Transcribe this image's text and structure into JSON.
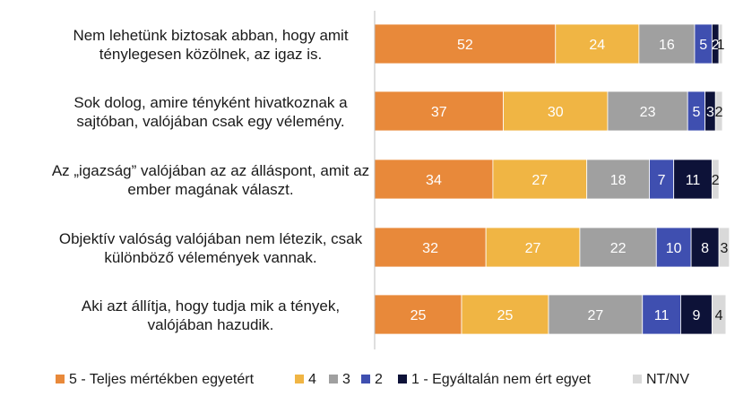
{
  "chart_data": {
    "type": "bar",
    "orientation": "horizontal",
    "stacked": true,
    "xlim": [
      0,
      100
    ],
    "grid": false,
    "legend_position": "bottom",
    "categories": [
      "Nem lehetünk biztosak abban, hogy amit ténylegesen közölnek, az igaz is.",
      "Sok dolog, amire tényként hivatkoznak a sajtóban, valójában csak egy vélemény.",
      "Az „igazság” valójában az az álláspont, amit az ember magának választ.",
      "Objektív valóság valójában nem létezik, csak különböző vélemények vannak.",
      "Aki azt állítja, hogy tudja mik a tények, valójában hazudik."
    ],
    "category_lines": [
      [
        "Nem lehetünk biztosak abban, hogy amit",
        "ténylegesen közölnek, az igaz is."
      ],
      [
        "Sok dolog, amire tényként hivatkoznak a",
        "sajtóban, valójában csak egy vélemény."
      ],
      [
        "Az „igazság” valójában az az álláspont, amit az",
        "ember magának választ."
      ],
      [
        "Objektív valóság valójában nem létezik, csak",
        "különböző vélemények vannak."
      ],
      [
        "Aki azt állítja, hogy tudja mik a tények,",
        "valójában hazudik."
      ]
    ],
    "series": [
      {
        "name": "5 - Teljes mértékben egyetért",
        "color": "#E8893A",
        "label_color": "#ffffff",
        "values": [
          52,
          37,
          34,
          32,
          25
        ]
      },
      {
        "name": "4",
        "color": "#F0B544",
        "label_color": "#ffffff",
        "values": [
          24,
          30,
          27,
          27,
          25
        ]
      },
      {
        "name": "3",
        "color": "#A0A0A0",
        "label_color": "#ffffff",
        "values": [
          16,
          23,
          18,
          22,
          27
        ]
      },
      {
        "name": "2",
        "color": "#3F4FB0",
        "label_color": "#ffffff",
        "values": [
          5,
          5,
          7,
          10,
          11
        ]
      },
      {
        "name": "1 - Egyáltalán nem ért egyet",
        "color": "#0D1238",
        "label_color": "#ffffff",
        "values": [
          2,
          3,
          11,
          8,
          9
        ]
      },
      {
        "name": "NT/NV",
        "color": "#D9D9D9",
        "label_color": "#1a1a1a",
        "values": [
          1,
          2,
          2,
          3,
          4
        ]
      }
    ]
  }
}
